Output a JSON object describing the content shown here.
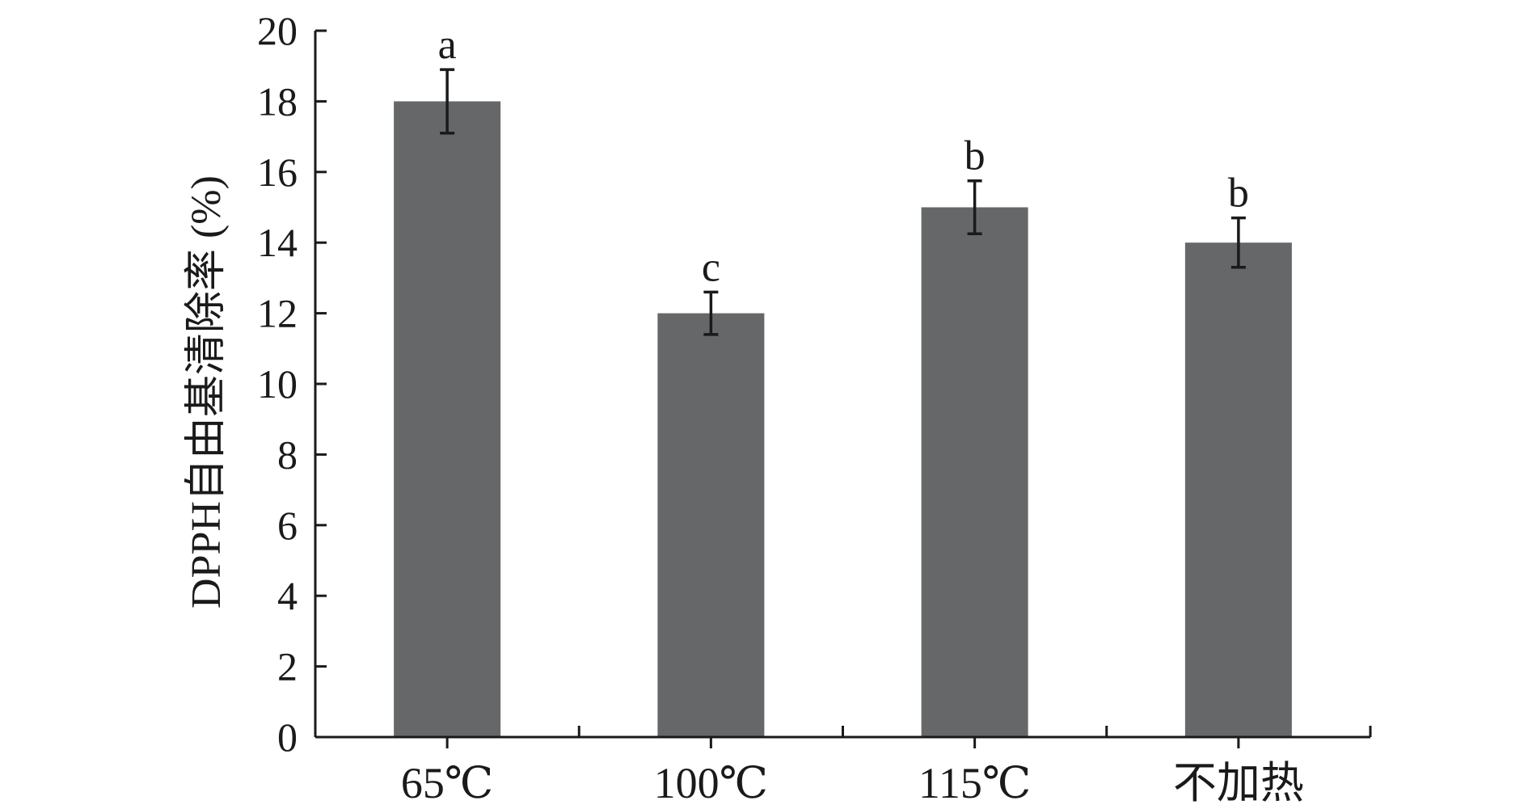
{
  "chart_data": {
    "type": "bar",
    "title": "",
    "xlabel": "",
    "ylabel": "DPPH自由基清除率 (%)",
    "categories": [
      "65℃",
      "100℃",
      "115℃",
      "不加热"
    ],
    "values": [
      18,
      12,
      15,
      14
    ],
    "errors": [
      0.9,
      0.6,
      0.75,
      0.7
    ],
    "significance": [
      "a",
      "c",
      "b",
      "b"
    ],
    "ylim": [
      0,
      20
    ],
    "yticks": [
      "0",
      "2",
      "4",
      "6",
      "8",
      "10",
      "12",
      "14",
      "16",
      "18",
      "20"
    ],
    "bar_color": "#666769",
    "grid": false,
    "legend": "none"
  }
}
